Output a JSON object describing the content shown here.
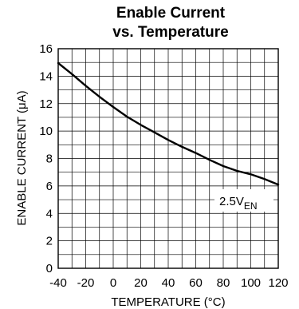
{
  "chart_data": {
    "type": "line",
    "title_line1": "Enable Current",
    "title_line2": "vs. Temperature",
    "xlabel": "TEMPERATURE (°C)",
    "ylabel": "ENABLE CURRENT (μA)",
    "xlim": [
      -40,
      120
    ],
    "ylim": [
      0,
      16
    ],
    "x_ticks": [
      -40,
      -20,
      0,
      20,
      40,
      60,
      80,
      100,
      120
    ],
    "y_ticks": [
      0,
      2,
      4,
      6,
      8,
      10,
      12,
      14,
      16
    ],
    "grid": true,
    "annotation": {
      "main": "2.5V",
      "sub": "EN"
    },
    "series": [
      {
        "x": [
          -40,
          -30,
          -20,
          -10,
          0,
          10,
          20,
          30,
          40,
          50,
          60,
          70,
          80,
          90,
          100,
          110,
          120
        ],
        "y": [
          14.95,
          14.15,
          13.3,
          12.5,
          11.75,
          11.05,
          10.45,
          9.9,
          9.35,
          8.85,
          8.4,
          7.9,
          7.45,
          7.1,
          6.85,
          6.5,
          6.1
        ]
      }
    ]
  }
}
